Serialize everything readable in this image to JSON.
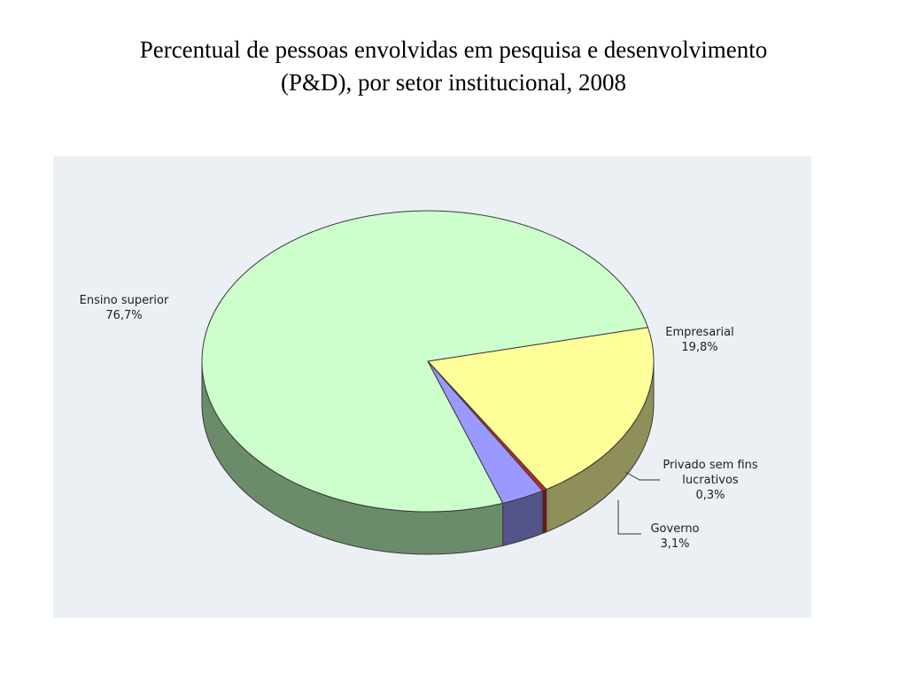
{
  "title_lines": [
    "Percentual de pessoas envolvidas em pesquisa e desenvolvimento",
    "(P&D), por setor institucional, 2008"
  ],
  "chart_data": {
    "type": "pie",
    "title": "Percentual de pessoas envolvidas em pesquisa e desenvolvimento (P&D), por setor institucional, 2008",
    "unit": "%",
    "slices": [
      {
        "label": "Empresarial",
        "value": 19.8,
        "value_label": "19,8%",
        "color": "#ffff99",
        "side_color": "#8f8f5a"
      },
      {
        "label": "Privado sem fins lucrativos",
        "label_lines": [
          "Privado sem fins",
          "lucrativos"
        ],
        "value": 0.3,
        "value_label": "0,3%",
        "color": "#cc2222",
        "side_color": "#6e1414"
      },
      {
        "label": "Governo",
        "value": 3.1,
        "value_label": "3,1%",
        "color": "#9999ff",
        "side_color": "#54548a"
      },
      {
        "label": "Ensino superior",
        "value": 76.7,
        "value_label": "76,7%",
        "color": "#ccffcc",
        "side_color": "#6b8c6b"
      }
    ],
    "background": "#ebf0f4",
    "style": "3d-tilted",
    "legend": "none",
    "labels": "outside-with-leaders"
  }
}
